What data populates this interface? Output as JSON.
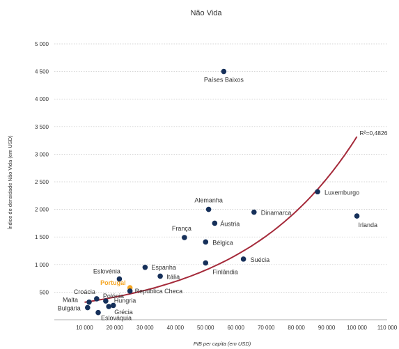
{
  "chart_data": {
    "type": "scatter",
    "title": "Não Vida",
    "xlabel": "PIB per capita (em USD)",
    "ylabel": "Índice de densidade Não Vida (em USD)",
    "xlim": [
      0,
      110000
    ],
    "ylim": [
      0,
      5000
    ],
    "x_ticks": [
      10000,
      20000,
      30000,
      40000,
      50000,
      60000,
      70000,
      80000,
      90000,
      100000,
      110000
    ],
    "x_tick_labels": [
      "10 000",
      "20 000",
      "30 000",
      "40 000",
      "50 000",
      "60 000",
      "70 000",
      "80 000",
      "90 000",
      "100 000",
      "110 000"
    ],
    "y_ticks": [
      500,
      1000,
      1500,
      2000,
      2500,
      3000,
      3500,
      4000,
      4500,
      5000
    ],
    "y_tick_labels": [
      "500",
      "1 000",
      "1 500",
      "2 000",
      "2 500",
      "3 000",
      "3 500",
      "4 000",
      "4 500",
      "5 000"
    ],
    "grid": "horizontal dotted",
    "point_color": "#16305a",
    "highlight_color": "#f5a623",
    "trend_color": "#a52a3a",
    "trendline_label": "R²=0,4826",
    "trendline": {
      "type": "exponential",
      "a": 244,
      "b": 2.61e-05
    },
    "points": [
      {
        "label": "Países Baixos",
        "x": 56000,
        "y": 4500
      },
      {
        "label": "Luxemburgo",
        "x": 87000,
        "y": 2320
      },
      {
        "label": "Irlanda",
        "x": 100000,
        "y": 1880
      },
      {
        "label": "Alemanha",
        "x": 51000,
        "y": 2000
      },
      {
        "label": "Dinamarca",
        "x": 66000,
        "y": 1950
      },
      {
        "label": "Áustria",
        "x": 53000,
        "y": 1750
      },
      {
        "label": "França",
        "x": 43000,
        "y": 1490
      },
      {
        "label": "Bélgica",
        "x": 50000,
        "y": 1410
      },
      {
        "label": "Suécia",
        "x": 62500,
        "y": 1100
      },
      {
        "label": "Finlândia",
        "x": 50000,
        "y": 1030
      },
      {
        "label": "Eslovénia",
        "x": 21500,
        "y": 740
      },
      {
        "label": "Espanha",
        "x": 30000,
        "y": 950
      },
      {
        "label": "Itália",
        "x": 35000,
        "y": 790
      },
      {
        "label": "Portugal",
        "x": 25000,
        "y": 580,
        "highlight": true
      },
      {
        "label": "República Checa",
        "x": 25000,
        "y": 520
      },
      {
        "label": "Croácia",
        "x": 14000,
        "y": 380
      },
      {
        "label": "Malta",
        "x": 11500,
        "y": 320
      },
      {
        "label": "Polónia",
        "x": 17000,
        "y": 340
      },
      {
        "label": "Hungria",
        "x": 19500,
        "y": 260
      },
      {
        "label": "Grécia",
        "x": 18000,
        "y": 240
      },
      {
        "label": "Bulgária",
        "x": 11000,
        "y": 220
      },
      {
        "label": "Eslováquia",
        "x": 14500,
        "y": 130
      }
    ]
  }
}
